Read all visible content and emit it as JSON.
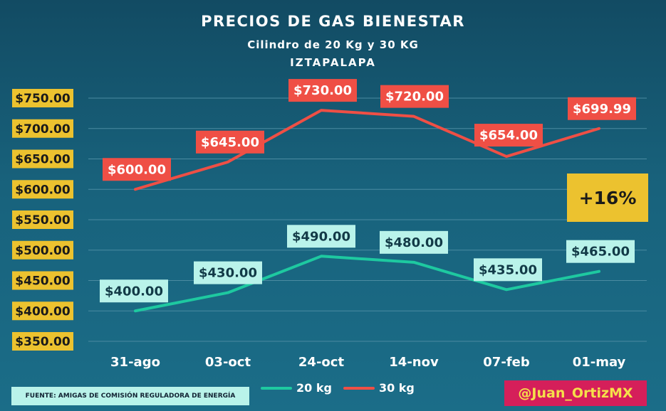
{
  "header": {
    "title": "PRECIOS DE GAS BIENESTAR",
    "subtitle": "Cilindro de 20 Kg y 30 KG",
    "location": "IZTAPALAPA"
  },
  "badge": {
    "label": "+16%",
    "color": "#ecc22f"
  },
  "footer": {
    "source": "FUENTE: AMIGAS DE COMISIÓN REGULADORA DE ENERGÍA",
    "handle": "@Juan_OrtizMX"
  },
  "chart_data": {
    "type": "line",
    "title": "PRECIOS DE GAS BIENESTAR",
    "subtitle": "Cilindro de 20 Kg y 30 KG",
    "categories": [
      "31-ago",
      "03-oct",
      "24-oct",
      "14-nov",
      "07-feb",
      "01-may"
    ],
    "ylim": [
      350,
      750
    ],
    "yticks": [
      350,
      400,
      450,
      500,
      550,
      600,
      650,
      700,
      750
    ],
    "ytick_labels": [
      "$350.00",
      "$400.00",
      "$450.00",
      "$500.00",
      "$550.00",
      "$600.00",
      "$650.00",
      "$700.00",
      "$750.00"
    ],
    "grid": true,
    "legend_position": "bottom-center",
    "series": [
      {
        "name": "20 kg",
        "color": "#1ec9a0",
        "label_bg": "#b9f3ea",
        "label_color": "#123a47",
        "values": [
          400,
          430,
          490,
          480,
          435,
          465
        ],
        "labels": [
          "$400.00",
          "$430.00",
          "$490.00",
          "$480.00",
          "$435.00",
          "$465.00"
        ]
      },
      {
        "name": "30 kg",
        "color": "#ef4f45",
        "label_bg": "#ef4f45",
        "label_color": "#ffffff",
        "values": [
          600,
          645,
          730,
          720,
          654,
          699.99
        ],
        "labels": [
          "$600.00",
          "$645.00",
          "$730.00",
          "$720.00",
          "$654.00",
          "$699.99"
        ]
      }
    ]
  }
}
